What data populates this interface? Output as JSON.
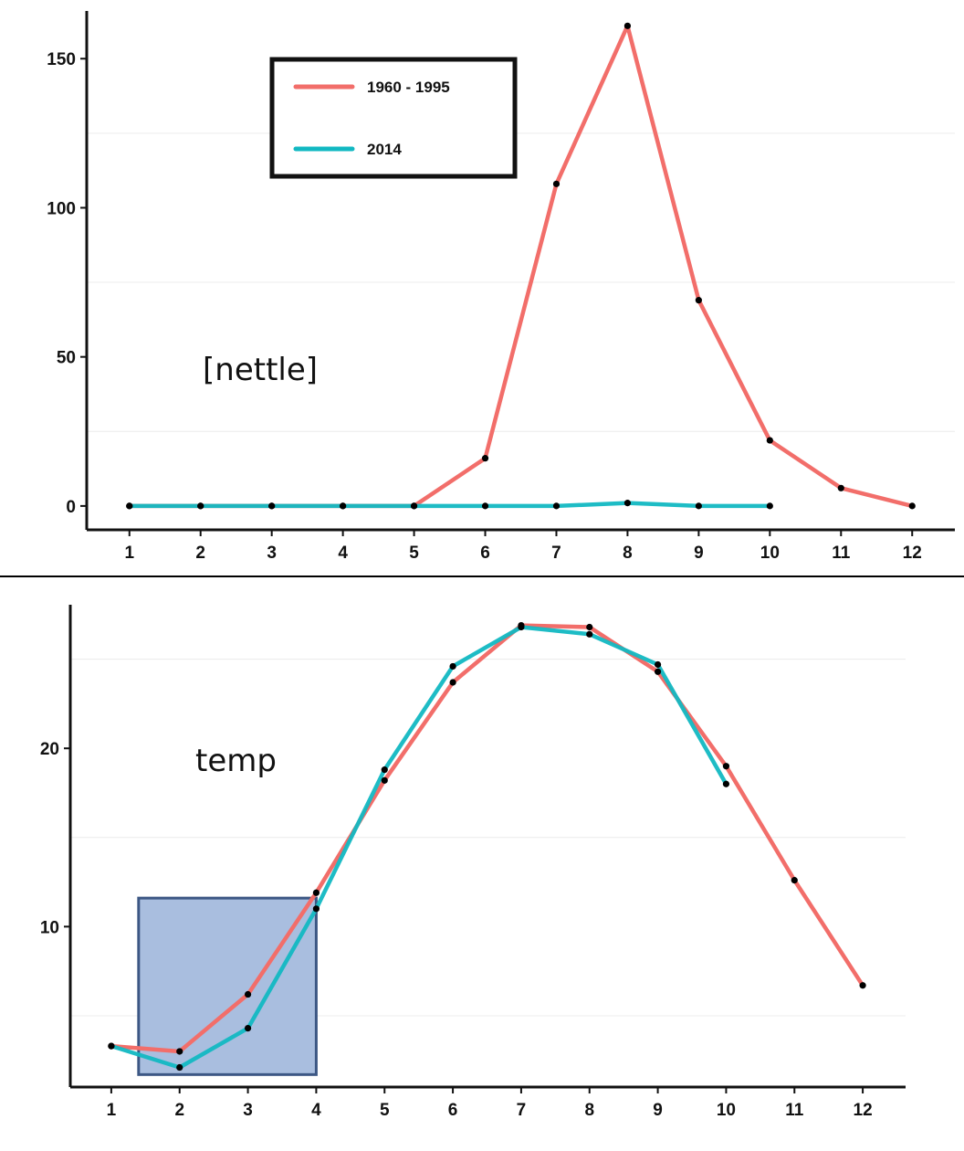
{
  "colors": {
    "series_1": "#f26e6a",
    "series_2": "#12b8c2",
    "point": "#000000",
    "grid": "#ececec",
    "highlight_fill": "#a9bedf",
    "highlight_stroke": "#3c5784"
  },
  "chart_data": [
    {
      "type": "line",
      "title": "",
      "xlabel": "",
      "ylabel": "",
      "annotation": "[nettle]",
      "x": [
        1,
        2,
        3,
        4,
        5,
        6,
        7,
        8,
        9,
        10,
        11,
        12
      ],
      "xlim": [
        0.4,
        12.6
      ],
      "ylim": [
        -8,
        166
      ],
      "yticks": [
        0,
        50,
        100,
        150
      ],
      "grid": "horizontal-minor",
      "legend": {
        "placement": "top-left",
        "entries": [
          "1960 - 1995",
          "2014"
        ]
      },
      "series": [
        {
          "name": "1960 - 1995",
          "color": "#f26e6a",
          "values": [
            0,
            0,
            0,
            0,
            0,
            16,
            108,
            161,
            69,
            22,
            6,
            0
          ]
        },
        {
          "name": "2014",
          "color": "#12b8c2",
          "values": [
            0,
            0,
            0,
            0,
            0,
            0,
            0,
            1,
            0,
            0,
            null,
            null
          ]
        }
      ]
    },
    {
      "type": "line",
      "title": "",
      "xlabel": "",
      "ylabel": "",
      "annotation": "temp",
      "x": [
        1,
        2,
        3,
        4,
        5,
        6,
        7,
        8,
        9,
        10,
        11,
        12
      ],
      "xlim": [
        0.4,
        12.6
      ],
      "ylim": [
        1,
        27.8
      ],
      "yticks": [
        10,
        20
      ],
      "grid": "horizontal-minor",
      "highlight_region": {
        "x": [
          1.4,
          4
        ],
        "y": [
          1.7,
          11.6
        ]
      },
      "series": [
        {
          "name": "1960 - 1995",
          "color": "#f26e6a",
          "values": [
            3.3,
            3.0,
            6.2,
            11.9,
            18.2,
            23.7,
            26.9,
            26.8,
            24.3,
            19.0,
            12.6,
            6.7
          ]
        },
        {
          "name": "2014",
          "color": "#12b8c2",
          "values": [
            3.3,
            2.1,
            4.3,
            11.0,
            18.8,
            24.6,
            26.8,
            26.4,
            24.7,
            18.0,
            null,
            null
          ]
        }
      ]
    }
  ]
}
